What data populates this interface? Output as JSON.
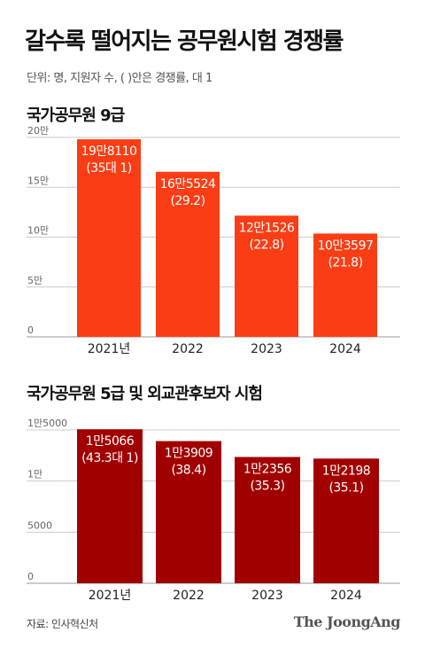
{
  "title": "갈수록 떨어지는 공무원시험 경쟁률",
  "subtitle": "단위: 명, 지원자 수, ( )안은 경쟁률, 대 1",
  "chart_data": [
    {
      "type": "bar",
      "title": "국가공무원 9급",
      "categories": [
        "2021년",
        "2022",
        "2023",
        "2024"
      ],
      "values": [
        198110,
        165524,
        121526,
        103597
      ],
      "value_labels": [
        "19만8110",
        "16만5524",
        "12만1526",
        "10만3597"
      ],
      "ratio_labels": [
        "(35대 1)",
        "(29.2)",
        "(22.8)",
        "(21.8)"
      ],
      "ytick_values": [
        0,
        50000,
        100000,
        150000,
        200000
      ],
      "ytick_labels": [
        "0",
        "5만",
        "10만",
        "15만",
        "20만"
      ],
      "ylim": [
        0,
        200000
      ],
      "grid": true,
      "color": "#fa3d14"
    },
    {
      "type": "bar",
      "title": "국가공무원 5급 및 외교관후보자 시험",
      "categories": [
        "2021년",
        "2022",
        "2023",
        "2024"
      ],
      "values": [
        15066,
        13909,
        12356,
        12198
      ],
      "value_labels": [
        "1만5066",
        "1만3909",
        "1만2356",
        "1만2198"
      ],
      "ratio_labels": [
        "(43.3대 1)",
        "(38.4)",
        "(35.3)",
        "(35.1)"
      ],
      "ytick_values": [
        0,
        5000,
        10000,
        15000
      ],
      "ytick_labels": [
        "0",
        "5000",
        "1만",
        "1만5000"
      ],
      "ylim": [
        0,
        15000
      ],
      "grid": true,
      "color": "#a00000"
    }
  ],
  "source": "자료: 인사혁신처",
  "brand": "The JoongAng"
}
